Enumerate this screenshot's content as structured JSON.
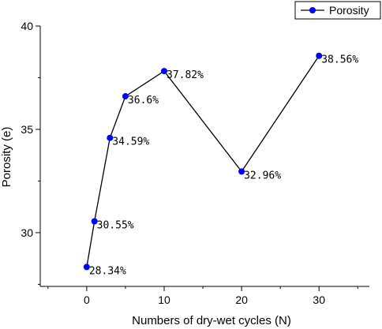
{
  "chart_data": {
    "type": "line",
    "xlabel": "Numbers of dry-wet cycles (N)",
    "ylabel": "Porosity (e)",
    "xlim": [
      -6,
      36.5
    ],
    "ylim": [
      27.4,
      40
    ],
    "xticks": [
      0,
      10,
      20,
      30
    ],
    "yticks": [
      30,
      35,
      40
    ],
    "grid": false,
    "legend_position": "top-right",
    "colors": {
      "marker": "#0000ff",
      "line": "#000000"
    },
    "series": [
      {
        "name": "Porosity",
        "x": [
          0,
          1,
          3,
          5,
          10,
          20,
          30
        ],
        "values": [
          28.34,
          30.55,
          34.59,
          36.6,
          37.82,
          32.96,
          38.56
        ],
        "labels": [
          "28.34%",
          "30.55%",
          "34.59%",
          "36.6%",
          "37.82%",
          "32.96%",
          "38.56%"
        ]
      }
    ]
  }
}
